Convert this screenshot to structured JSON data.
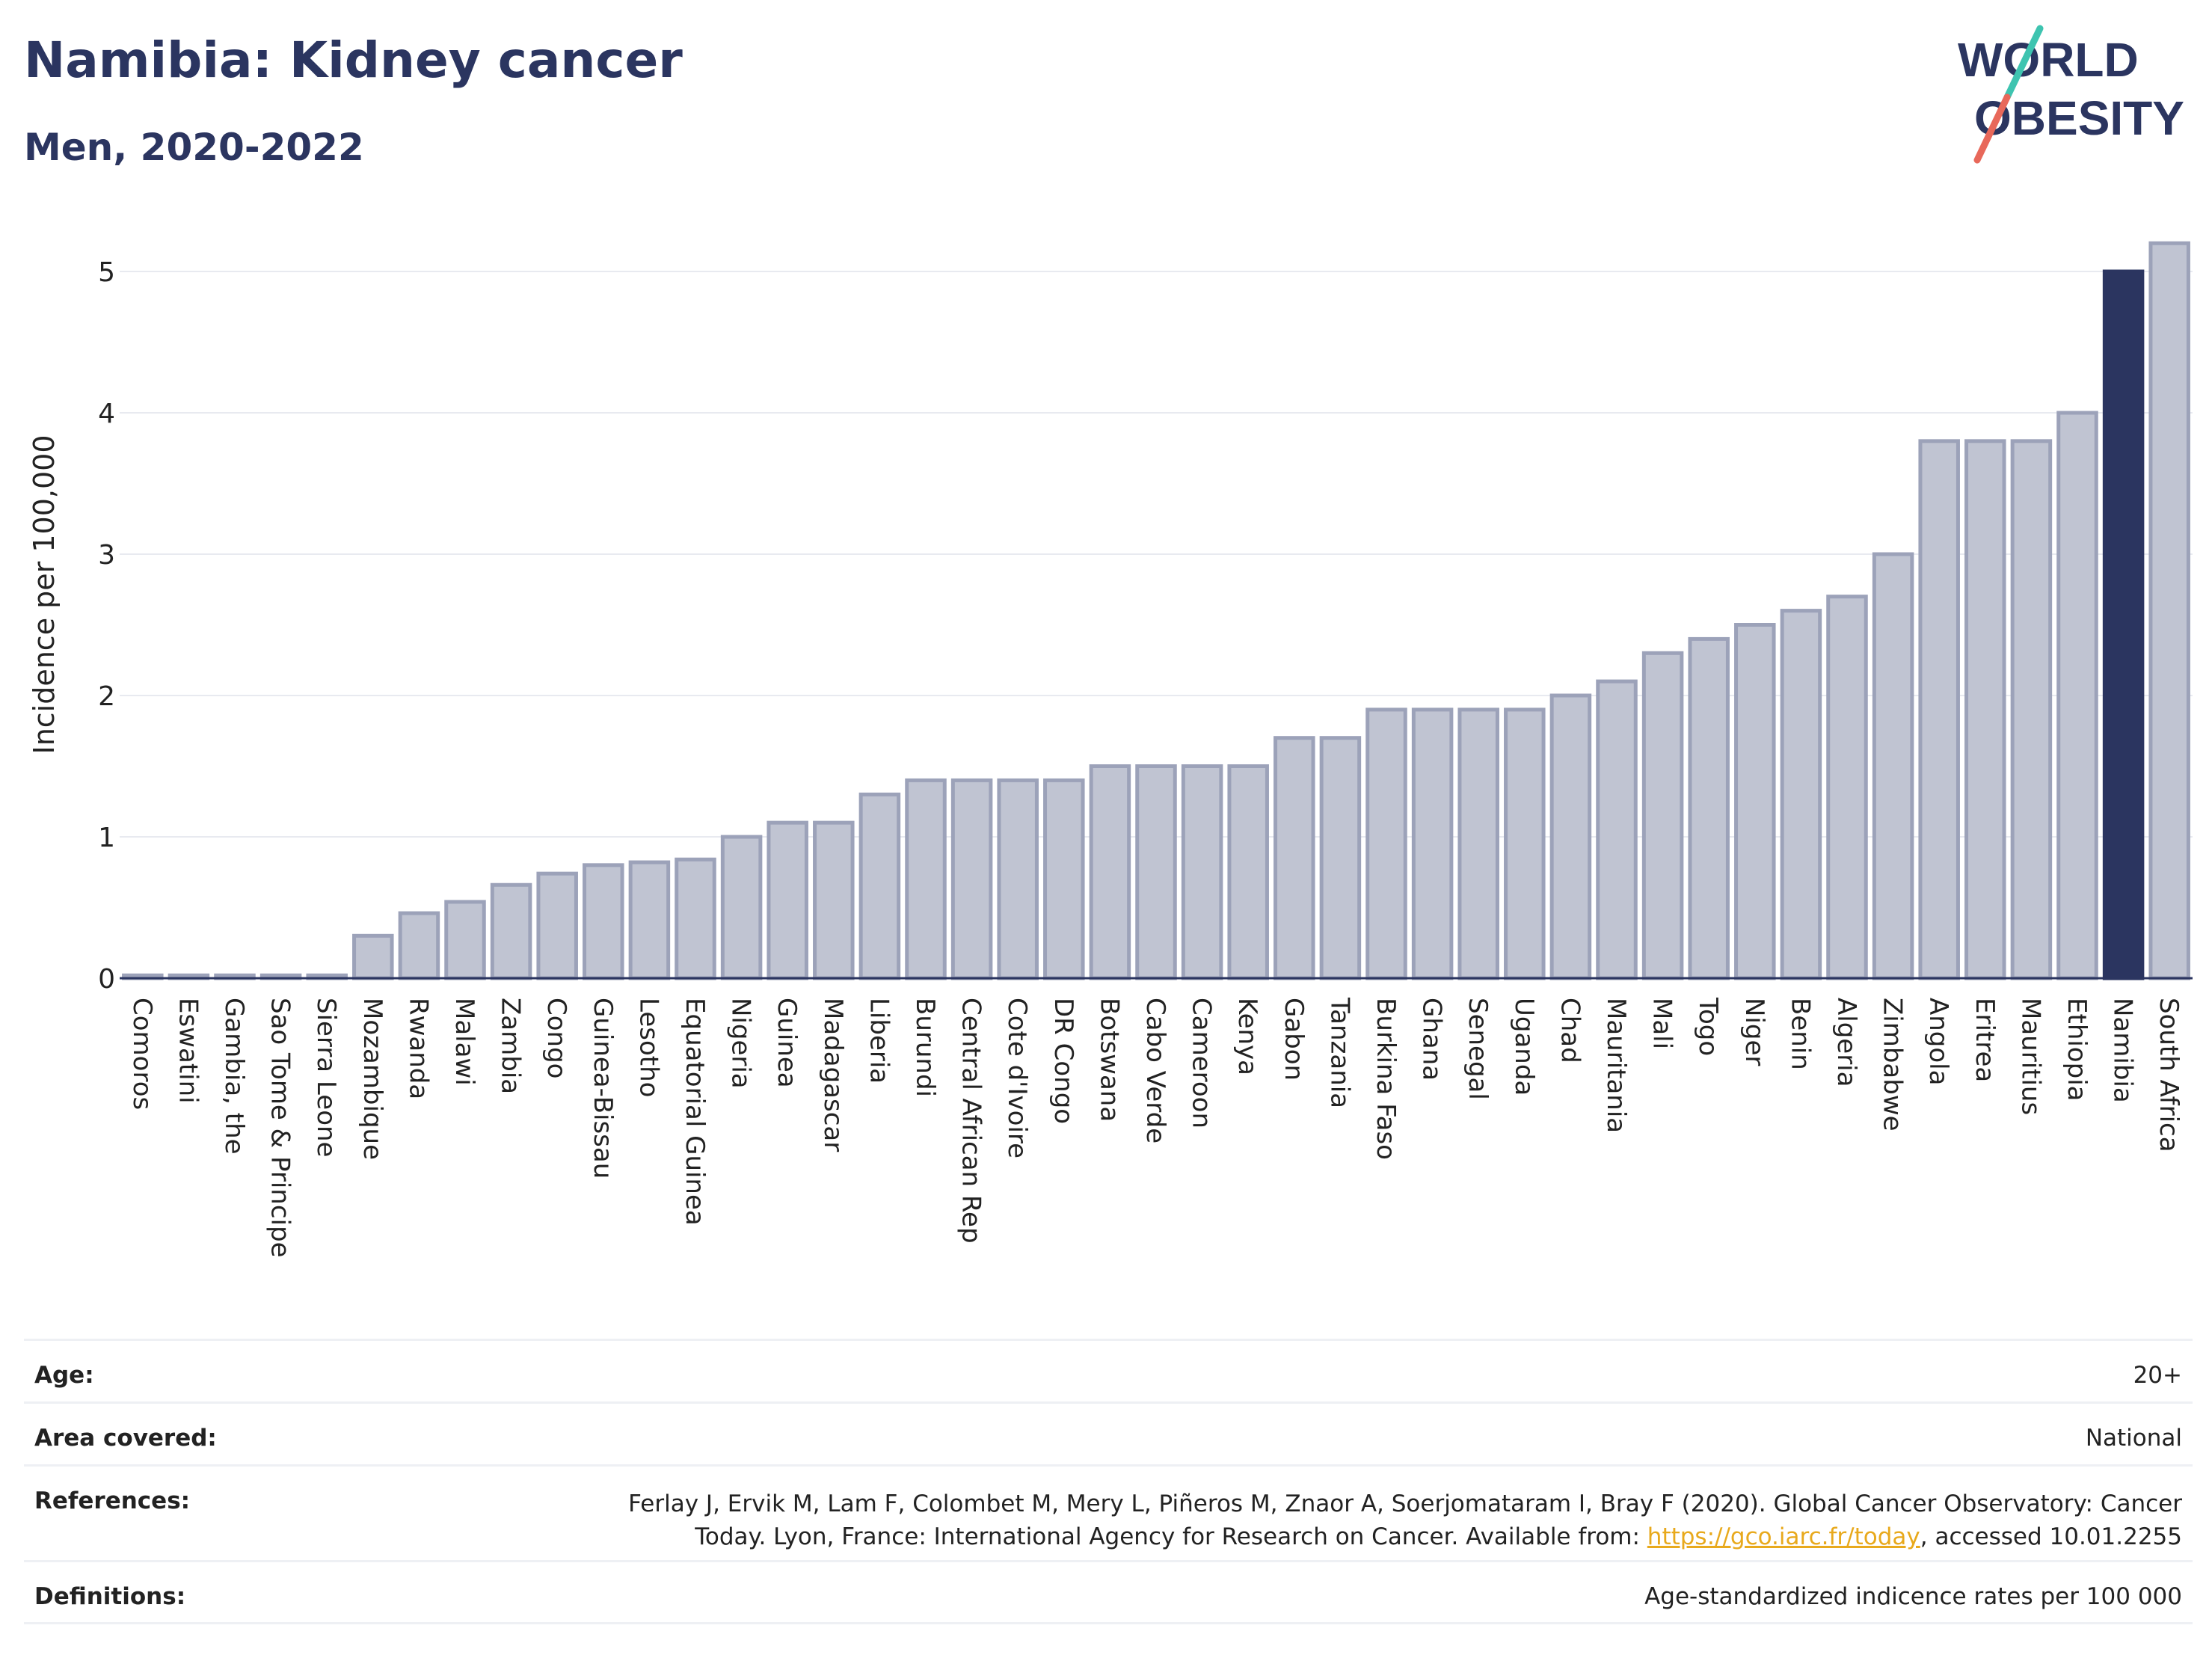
{
  "header": {
    "title": "Namibia: Kidney cancer",
    "subtitle": "Men, 2020-2022"
  },
  "logo": {
    "line1": "WORLD",
    "line2": "OBESITY",
    "colors": {
      "text": "#2b3560",
      "slash_top": "#3ec4b0",
      "slash_bottom": "#e8685a"
    }
  },
  "chart_data": {
    "type": "bar",
    "ylabel": "Incidence per 100,000",
    "xlabel": "",
    "ylim": [
      0,
      5.3
    ],
    "yticks": [
      0,
      1,
      2,
      3,
      4,
      5
    ],
    "grid": true,
    "highlight": "Namibia",
    "colors": {
      "bar": "#c0c4d2",
      "bar_edge": "#9ca2b9",
      "highlight": "#2b3560"
    },
    "categories": [
      "Comoros",
      "Eswatini",
      "Gambia, the",
      "Sao Tome & Principe",
      "Sierra Leone",
      "Mozambique",
      "Rwanda",
      "Malawi",
      "Zambia",
      "Congo",
      "Guinea-Bissau",
      "Lesotho",
      "Equatorial Guinea",
      "Nigeria",
      "Guinea",
      "Madagascar",
      "Liberia",
      "Burundi",
      "Central African Rep",
      "Cote d'Ivoire",
      "DR Congo",
      "Botswana",
      "Cabo Verde",
      "Cameroon",
      "Kenya",
      "Gabon",
      "Tanzania",
      "Burkina Faso",
      "Ghana",
      "Senegal",
      "Uganda",
      "Chad",
      "Mauritania",
      "Mali",
      "Togo",
      "Niger",
      "Benin",
      "Algeria",
      "Zimbabwe",
      "Angola",
      "Eritrea",
      "Mauritius",
      "Ethiopia",
      "Namibia",
      "South Africa"
    ],
    "values": [
      0.02,
      0.02,
      0.02,
      0.02,
      0.02,
      0.3,
      0.46,
      0.54,
      0.66,
      0.74,
      0.8,
      0.82,
      0.84,
      1.0,
      1.1,
      1.1,
      1.3,
      1.4,
      1.4,
      1.4,
      1.4,
      1.5,
      1.5,
      1.5,
      1.5,
      1.7,
      1.7,
      1.9,
      1.9,
      1.9,
      1.9,
      2.0,
      2.1,
      2.3,
      2.4,
      2.5,
      2.6,
      2.7,
      3.0,
      3.8,
      3.8,
      3.8,
      4.0,
      5.0,
      5.2
    ]
  },
  "info": {
    "age_label": "Age:",
    "age_value": "20+",
    "area_label": "Area covered:",
    "area_value": "National",
    "references_label": "References:",
    "references_line1": "Ferlay J, Ervik M, Lam F, Colombet M, Mery L, Piñeros M, Znaor A, Soerjomataram I, Bray F (2020). Global Cancer Observatory: Cancer",
    "references_line2_pre": "Today. Lyon, France: International Agency for Research on Cancer. Available from: ",
    "references_link": "https://gco.iarc.fr/today",
    "references_line2_post": ", accessed 10.01.2255",
    "definitions_label": "Definitions:",
    "definitions_value": "Age-standardized indicence rates per 100 000"
  }
}
